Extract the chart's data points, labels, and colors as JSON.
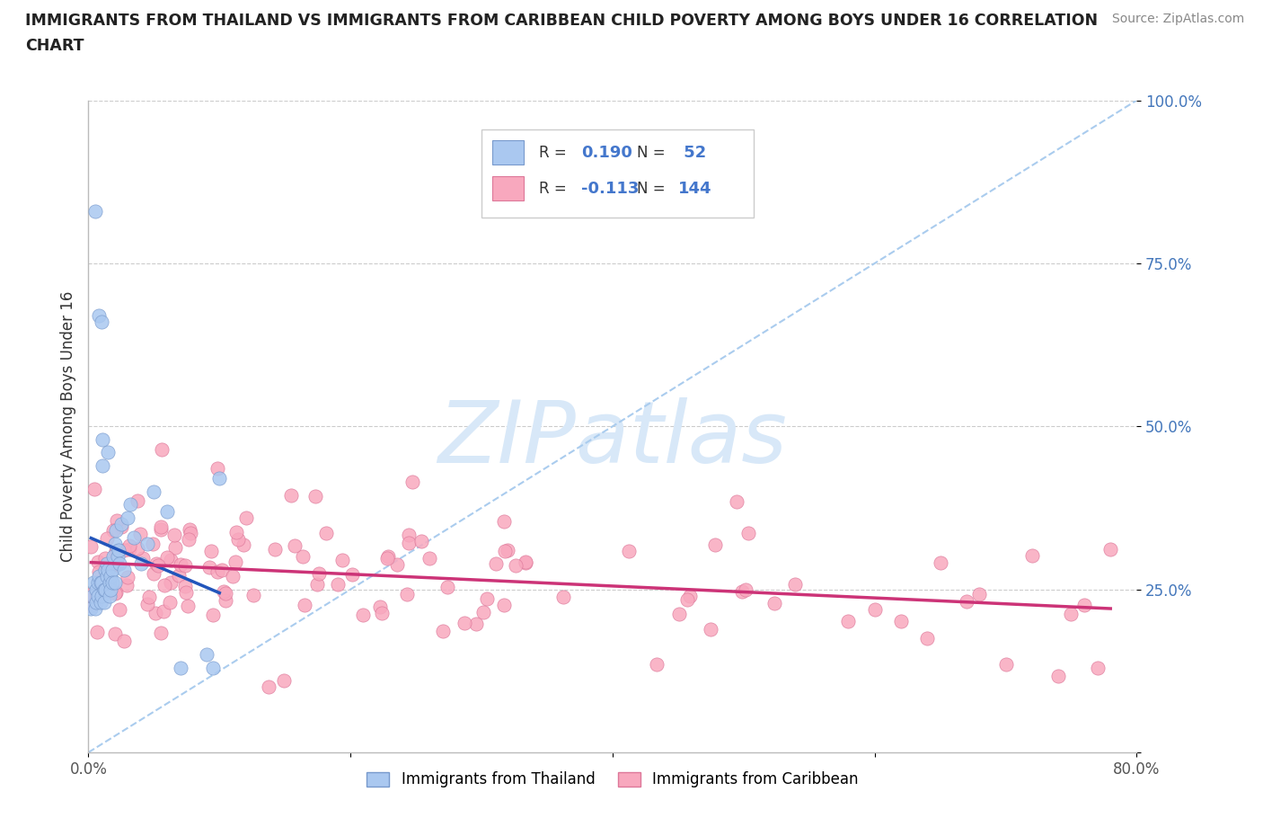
{
  "title_line1": "IMMIGRANTS FROM THAILAND VS IMMIGRANTS FROM CARIBBEAN CHILD POVERTY AMONG BOYS UNDER 16 CORRELATION",
  "title_line2": "CHART",
  "source": "Source: ZipAtlas.com",
  "ylabel": "Child Poverty Among Boys Under 16",
  "xlim": [
    0.0,
    0.8
  ],
  "ylim": [
    0.0,
    1.0
  ],
  "xtick_vals": [
    0.0,
    0.2,
    0.4,
    0.6,
    0.8
  ],
  "xtick_labels": [
    "0.0%",
    "",
    "",
    "",
    "80.0%"
  ],
  "ytick_vals": [
    0.0,
    0.25,
    0.5,
    0.75,
    1.0
  ],
  "ytick_labels": [
    "",
    "25.0%",
    "50.0%",
    "75.0%",
    "100.0%"
  ],
  "thailand_color": "#aac8f0",
  "thailand_edge_color": "#7799cc",
  "caribbean_color": "#f8a8be",
  "caribbean_edge_color": "#dd7799",
  "thailand_line_color": "#2255bb",
  "caribbean_line_color": "#cc3377",
  "diagonal_color": "#aaccee",
  "diagonal_dash": "--",
  "grid_color": "#cccccc",
  "watermark": "ZIPatlas",
  "watermark_color": "#d8e8f8",
  "background_color": "#ffffff",
  "legend_r1": "R = ",
  "legend_v1": "0.190",
  "legend_n1_label": "N = ",
  "legend_n1": " 52",
  "legend_r2": "R = ",
  "legend_v2": "-0.113",
  "legend_n2_label": "N = ",
  "legend_n2": "144",
  "legend_text_color": "#333333",
  "legend_val_color": "#4477cc",
  "bottom_legend_label1": "Immigrants from Thailand",
  "bottom_legend_label2": "Immigrants from Caribbean",
  "N_thailand": 52,
  "N_caribbean": 144
}
